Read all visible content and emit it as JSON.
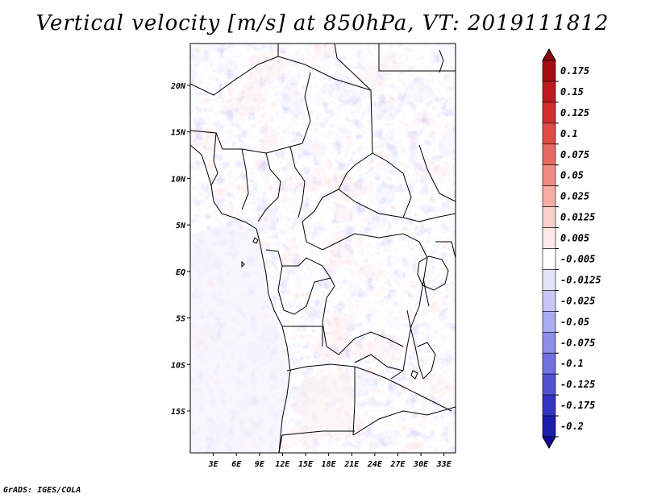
{
  "title": "Vertical velocity [m/s] at 850hPa, VT: 2019111812",
  "map": {
    "lat_range": [
      -19.5,
      24.5
    ],
    "lon_range": [
      0,
      34.5
    ],
    "y_ticks": [
      {
        "lat": 20,
        "label": "20N"
      },
      {
        "lat": 15,
        "label": "15N"
      },
      {
        "lat": 10,
        "label": "10N"
      },
      {
        "lat": 5,
        "label": "5N"
      },
      {
        "lat": 0,
        "label": "EQ"
      },
      {
        "lat": -5,
        "label": "5S"
      },
      {
        "lat": -10,
        "label": "10S"
      },
      {
        "lat": -15,
        "label": "15S"
      }
    ],
    "x_ticks": [
      {
        "lon": 3,
        "label": "3E"
      },
      {
        "lon": 6,
        "label": "6E"
      },
      {
        "lon": 9,
        "label": "9E"
      },
      {
        "lon": 12,
        "label": "12E"
      },
      {
        "lon": 15,
        "label": "15E"
      },
      {
        "lon": 18,
        "label": "18E"
      },
      {
        "lon": 21,
        "label": "21E"
      },
      {
        "lon": 24,
        "label": "24E"
      },
      {
        "lon": 27,
        "label": "27E"
      },
      {
        "lon": 30,
        "label": "30E"
      },
      {
        "lon": 33,
        "label": "33E"
      }
    ]
  },
  "colorbar": {
    "levels": [
      {
        "label": "0.175",
        "color": "#a50d13"
      },
      {
        "label": "0.15",
        "color": "#bf1b1f"
      },
      {
        "label": "0.125",
        "color": "#d22e2e"
      },
      {
        "label": "0.1",
        "color": "#e04a45"
      },
      {
        "label": "0.075",
        "color": "#e86a62"
      },
      {
        "label": "0.05",
        "color": "#f08c84"
      },
      {
        "label": "0.025",
        "color": "#f6aea6"
      },
      {
        "label": "0.0125",
        "color": "#fad0cb"
      },
      {
        "label": "0.005",
        "color": "#fde9e6"
      },
      {
        "label": "-0.005",
        "color": "#ffffff"
      },
      {
        "label": "-0.0125",
        "color": "#e4e4fb"
      },
      {
        "label": "-0.025",
        "color": "#c8c8f6"
      },
      {
        "label": "-0.05",
        "color": "#ababf0"
      },
      {
        "label": "-0.075",
        "color": "#8e8ee9"
      },
      {
        "label": "-0.1",
        "color": "#7070e0"
      },
      {
        "label": "-0.125",
        "color": "#5252d4"
      },
      {
        "label": "-0.175",
        "color": "#3434c4"
      },
      {
        "label": "-0.2",
        "color": "#1c1cac"
      }
    ],
    "top_cap_color": "#8c0a10",
    "bottom_cap_color": "#120a96"
  },
  "credit": "GrADS: IGES/COLA"
}
